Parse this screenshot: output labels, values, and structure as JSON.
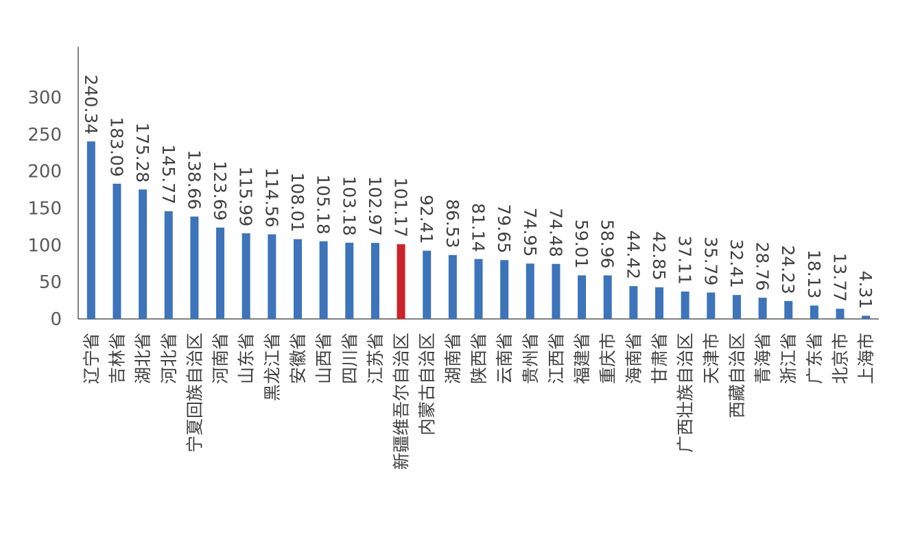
{
  "chart_data": {
    "type": "bar",
    "title": "",
    "xlabel": "",
    "ylabel": "",
    "ylim": [
      0,
      350
    ],
    "yticks": [
      0,
      50,
      100,
      150,
      200,
      250,
      300
    ],
    "grid": false,
    "legend": "none",
    "colors": {
      "bar": "#3d74ba",
      "highlight": "#cc2229",
      "axis": "#000000"
    },
    "highlight_category": "新疆维吾尔自治区",
    "categories": [
      "辽宁省",
      "吉林省",
      "湖北省",
      "河北省",
      "宁夏回族自治区",
      "河南省",
      "山东省",
      "黑龙江省",
      "安徽省",
      "山西省",
      "四川省",
      "江苏省",
      "新疆维吾尔自治区",
      "内蒙古自治区",
      "湖南省",
      "陕西省",
      "云南省",
      "贵州省",
      "江西省",
      "福建省",
      "重庆市",
      "海南省",
      "甘肃省",
      "广西壮族自治区",
      "天津市",
      "西藏自治区",
      "青海省",
      "浙江省",
      "广东省",
      "北京市",
      "上海市"
    ],
    "values": [
      240.34,
      183.09,
      175.28,
      145.77,
      138.66,
      123.69,
      115.99,
      114.56,
      108.01,
      105.18,
      103.18,
      102.97,
      101.17,
      92.41,
      86.53,
      81.14,
      79.65,
      74.95,
      74.48,
      59.01,
      58.96,
      44.42,
      42.85,
      37.11,
      35.79,
      32.41,
      28.76,
      24.23,
      18.13,
      13.77,
      4.31
    ],
    "data_labels": [
      "240.34",
      "183.09",
      "175.28",
      "145.77",
      "138.66",
      "123.69",
      "115.99",
      "114.56",
      "108.01",
      "105.18",
      "103.18",
      "102.97",
      "101.17",
      "92.41",
      "86.53",
      "81.14",
      "79.65",
      "74.95",
      "74.48",
      "59.01",
      "58.96",
      "44.42",
      "42.85",
      "37.11",
      "35.79",
      "32.41",
      "28.76",
      "24.23",
      "18.13",
      "13.77",
      "4.31"
    ]
  }
}
